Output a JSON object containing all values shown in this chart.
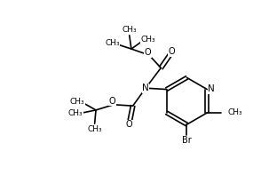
{
  "bg_color": "#ffffff",
  "line_color": "#000000",
  "lw": 1.2,
  "fs": 7.0,
  "xlim": [
    0,
    10
  ],
  "ylim": [
    0,
    7
  ]
}
